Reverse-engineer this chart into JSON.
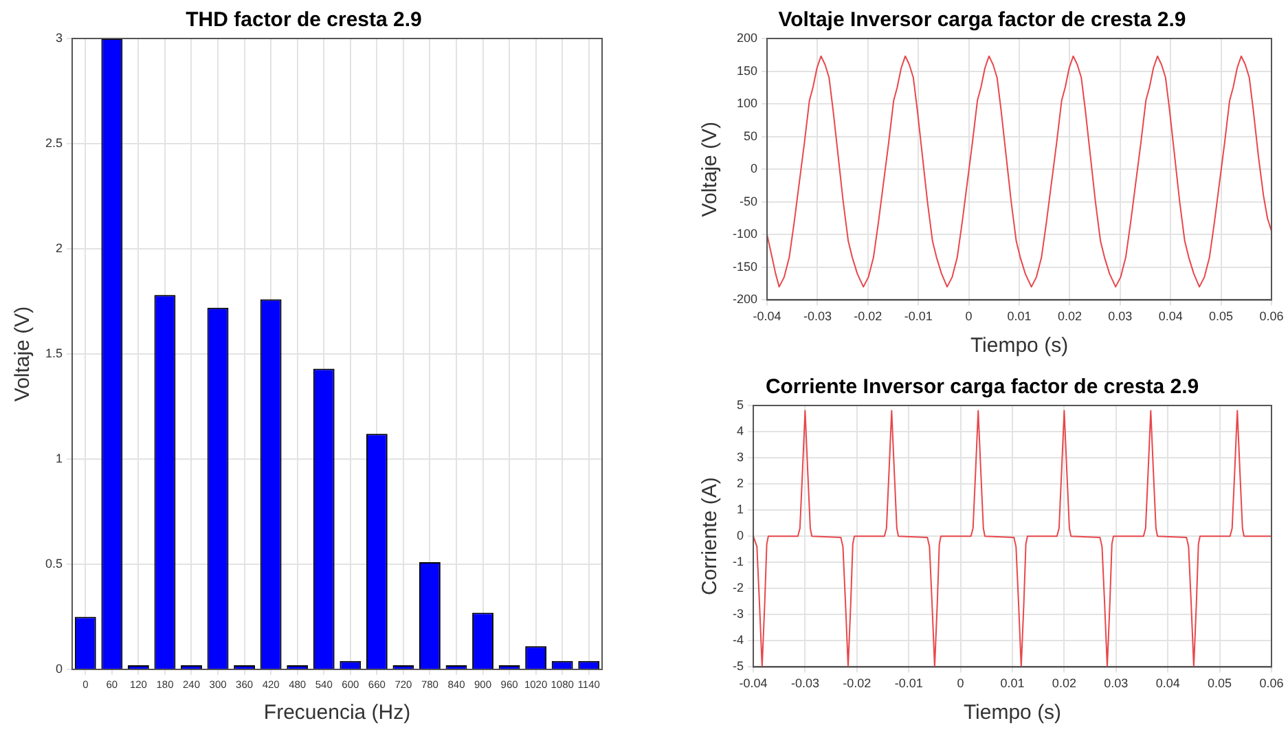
{
  "chart_data": [
    {
      "type": "bar",
      "title": "THD factor de cresta 2.9",
      "xlabel": "Frecuencia (Hz)",
      "ylabel": "Voltaje (V)",
      "categories": [
        "0",
        "60",
        "120",
        "180",
        "240",
        "300",
        "360",
        "420",
        "480",
        "540",
        "600",
        "660",
        "720",
        "780",
        "840",
        "900",
        "960",
        "1020",
        "1080",
        "1140"
      ],
      "values": [
        0.25,
        3,
        0.02,
        1.78,
        0.02,
        1.72,
        0.02,
        1.76,
        0.02,
        1.43,
        0.04,
        1.12,
        0.02,
        0.51,
        0.02,
        0.27,
        0.02,
        0.11,
        0.04,
        0.04
      ],
      "color": "#0000ff",
      "ylim": [
        0,
        3
      ],
      "yticks": [
        0,
        0.5,
        1,
        1.5,
        2,
        2.5,
        3
      ],
      "grid": true,
      "legend": false
    },
    {
      "type": "line",
      "title": "Voltaje Inversor carga factor de cresta 2.9",
      "xlabel": "Tiempo (s)",
      "ylabel": "Voltaje (V)",
      "x": [
        -0.04,
        -0.039,
        -0.0383,
        -0.0376,
        -0.0366,
        -0.0356,
        -0.0346,
        -0.0336,
        -0.0326,
        -0.0316,
        -0.0309,
        -0.0301,
        -0.0293,
        -0.0285,
        -0.0277,
        -0.0269,
        -0.0259,
        -0.0249,
        -0.0239,
        -0.0231,
        -0.0221,
        -0.0209,
        -0.0199,
        -0.0189,
        -0.0179,
        -0.0169,
        -0.0159,
        -0.0149,
        -0.0142,
        -0.0134,
        -0.0126,
        -0.0118,
        -0.011,
        -0.0102,
        -0.0092,
        -0.0082,
        -0.0072,
        -0.0064,
        -0.0054,
        -0.0043,
        -0.0033,
        -0.0023,
        -0.0013,
        -0.0003,
        0.0007,
        0.0017,
        0.0024,
        0.0032,
        0.004,
        0.0048,
        0.0056,
        0.0064,
        0.0074,
        0.0084,
        0.0094,
        0.0102,
        0.0112,
        0.0124,
        0.0134,
        0.0144,
        0.0154,
        0.0164,
        0.0174,
        0.0184,
        0.0191,
        0.0199,
        0.0207,
        0.0215,
        0.0223,
        0.0231,
        0.0241,
        0.0251,
        0.0261,
        0.0269,
        0.0279,
        0.0291,
        0.0301,
        0.0311,
        0.0321,
        0.0331,
        0.0341,
        0.0351,
        0.0358,
        0.0366,
        0.0374,
        0.0382,
        0.039,
        0.0398,
        0.0408,
        0.0418,
        0.0428,
        0.0436,
        0.0446,
        0.0457,
        0.0467,
        0.0477,
        0.0487,
        0.0497,
        0.0507,
        0.0517,
        0.0524,
        0.0532,
        0.054,
        0.0548,
        0.0556,
        0.0564,
        0.0574,
        0.0584,
        0.0592,
        0.06
      ],
      "series": [
        {
          "color": "#e8474b",
          "values": [
            -100,
            -135,
            -160,
            -180,
            -165,
            -135,
            -80,
            -20,
            40,
            105,
            125,
            155,
            173,
            160,
            140,
            90,
            20,
            -50,
            -110,
            -135,
            -160,
            -180,
            -165,
            -135,
            -80,
            -20,
            40,
            105,
            125,
            155,
            173,
            160,
            140,
            90,
            20,
            -50,
            -110,
            -135,
            -160,
            -180,
            -165,
            -135,
            -80,
            -20,
            40,
            105,
            125,
            155,
            173,
            160,
            140,
            90,
            20,
            -50,
            -110,
            -135,
            -160,
            -180,
            -165,
            -135,
            -80,
            -20,
            40,
            105,
            125,
            155,
            173,
            160,
            140,
            90,
            20,
            -50,
            -110,
            -135,
            -160,
            -180,
            -165,
            -135,
            -80,
            -20,
            40,
            105,
            125,
            155,
            173,
            160,
            140,
            90,
            20,
            -50,
            -110,
            -135,
            -160,
            -180,
            -165,
            -135,
            -80,
            -20,
            40,
            105,
            125,
            155,
            173,
            160,
            140,
            90,
            20,
            -40,
            -75,
            -95
          ]
        }
      ],
      "xlim": [
        -0.04,
        0.06
      ],
      "xticks": [
        -0.04,
        -0.03,
        -0.02,
        -0.01,
        0,
        0.01,
        0.02,
        0.03,
        0.04,
        0.05,
        0.06
      ],
      "ylim": [
        -200,
        200
      ],
      "yticks": [
        -200,
        -150,
        -100,
        -50,
        0,
        50,
        100,
        150,
        200
      ],
      "grid": true,
      "legend": false,
      "marker": "none"
    },
    {
      "type": "line",
      "title": "Corriente Inversor carga factor de cresta 2.9",
      "xlabel": "Tiempo (s)",
      "ylabel": "Corriente (A)",
      "x": [
        -0.04,
        -0.0393,
        -0.0388,
        -0.0383,
        -0.0378,
        -0.0374,
        -0.0371,
        -0.0314,
        -0.031,
        -0.0305,
        -0.03,
        -0.0295,
        -0.029,
        -0.0287,
        -0.0231,
        -0.0227,
        -0.0222,
        -0.0217,
        -0.0212,
        -0.0208,
        -0.0205,
        -0.0147,
        -0.0143,
        -0.0138,
        -0.0133,
        -0.0128,
        -0.0123,
        -0.012,
        -0.0064,
        -0.006,
        -0.0055,
        -0.005,
        -0.0045,
        -0.0041,
        -0.0038,
        0.002,
        0.0024,
        0.0029,
        0.0034,
        0.0039,
        0.0044,
        0.0047,
        0.0103,
        0.0107,
        0.0112,
        0.0117,
        0.0122,
        0.0126,
        0.0129,
        0.0186,
        0.019,
        0.0195,
        0.02,
        0.0205,
        0.021,
        0.0213,
        0.0269,
        0.0273,
        0.0278,
        0.0283,
        0.0288,
        0.0292,
        0.0295,
        0.0353,
        0.0357,
        0.0362,
        0.0367,
        0.0372,
        0.0377,
        0.038,
        0.0436,
        0.044,
        0.0445,
        0.045,
        0.0455,
        0.0459,
        0.0462,
        0.052,
        0.0524,
        0.0529,
        0.0534,
        0.0539,
        0.0544,
        0.0547,
        0.06
      ],
      "series": [
        {
          "color": "#e8474b",
          "values": [
            0,
            -0.4,
            -2.6,
            -5,
            -2.6,
            -0.3,
            0,
            0,
            0.3,
            2.5,
            4.8,
            2.5,
            0.3,
            0,
            -0.05,
            -0.4,
            -2.6,
            -5,
            -2.6,
            -0.3,
            0,
            0,
            0.3,
            2.5,
            4.8,
            2.5,
            0.3,
            0,
            -0.05,
            -0.4,
            -2.6,
            -5,
            -2.6,
            -0.3,
            0,
            0,
            0.3,
            2.5,
            4.8,
            2.5,
            0.3,
            0,
            -0.05,
            -0.4,
            -2.6,
            -5,
            -2.6,
            -0.3,
            0,
            0,
            0.3,
            2.5,
            4.8,
            2.5,
            0.3,
            0,
            -0.05,
            -0.4,
            -2.6,
            -5,
            -2.6,
            -0.3,
            0,
            0,
            0.3,
            2.5,
            4.8,
            2.5,
            0.3,
            0,
            -0.05,
            -0.4,
            -2.6,
            -5,
            -2.6,
            -0.3,
            0,
            0,
            0.3,
            2.5,
            4.8,
            2.5,
            0.3,
            0,
            0
          ]
        }
      ],
      "xlim": [
        -0.04,
        0.06
      ],
      "xticks": [
        -0.04,
        -0.03,
        -0.02,
        -0.01,
        0,
        0.01,
        0.02,
        0.03,
        0.04,
        0.05,
        0.06
      ],
      "ylim": [
        -5,
        5
      ],
      "yticks": [
        -5,
        -4,
        -3,
        -2,
        -1,
        0,
        1,
        2,
        3,
        4,
        5
      ],
      "grid": true,
      "legend": false,
      "marker": "none"
    }
  ]
}
